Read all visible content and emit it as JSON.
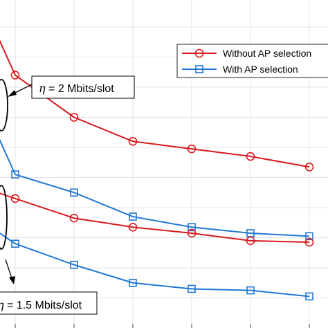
{
  "chart_data": {
    "type": "line",
    "x": [
      0,
      1,
      2,
      3,
      4,
      5,
      6
    ],
    "xlim": [
      -0.3,
      5.2
    ],
    "ylim": [
      0,
      10.9
    ],
    "grid": true,
    "series": [
      {
        "name": "Without AP selection",
        "group": "η = 2 Mbits/slot",
        "color": "#d7191c",
        "marker": "circle",
        "x": [
          -0.3,
          0,
          1,
          2,
          3,
          4,
          5
        ],
        "values": [
          9.7,
          8.4,
          7.0,
          6.2,
          5.95,
          5.7,
          5.35
        ]
      },
      {
        "name": "With AP selection",
        "group": "η = 2 Mbits/slot",
        "color": "#1f77d4",
        "marker": "square",
        "x": [
          -0.3,
          0,
          1,
          2,
          3,
          4,
          5
        ],
        "values": [
          6.4,
          5.1,
          4.5,
          3.7,
          3.35,
          3.15,
          3.05
        ]
      },
      {
        "name": "Without AP selection",
        "group": "η = 1.5 Mbits/slot",
        "color": "#d7191c",
        "marker": "circle",
        "x": [
          -0.3,
          0,
          1,
          2,
          3,
          4,
          5
        ],
        "values": [
          4.5,
          4.3,
          3.65,
          3.35,
          3.15,
          2.9,
          2.85
        ]
      },
      {
        "name": "With AP selection",
        "group": "η = 1.5 Mbits/slot",
        "color": "#1f77d4",
        "marker": "square",
        "x": [
          -0.3,
          0,
          1,
          2,
          3,
          4,
          5
        ],
        "values": [
          3.2,
          2.8,
          2.1,
          1.5,
          1.3,
          1.25,
          1.05
        ]
      }
    ],
    "legend": {
      "placement": "top-right",
      "entries": [
        {
          "label": "Without AP selection",
          "color": "#d7191c",
          "marker": "circle"
        },
        {
          "label": "With AP selection",
          "color": "#1f77d4",
          "marker": "square"
        }
      ]
    },
    "annotations": [
      {
        "label_symbol": "η",
        "label_value": " = 2 Mbits/slot",
        "group": "η = 2 Mbits/slot"
      },
      {
        "label_symbol": "η",
        "label_value": " = 1.5 Mbits/slot",
        "group": "η = 1.5 Mbits/slot"
      }
    ]
  }
}
